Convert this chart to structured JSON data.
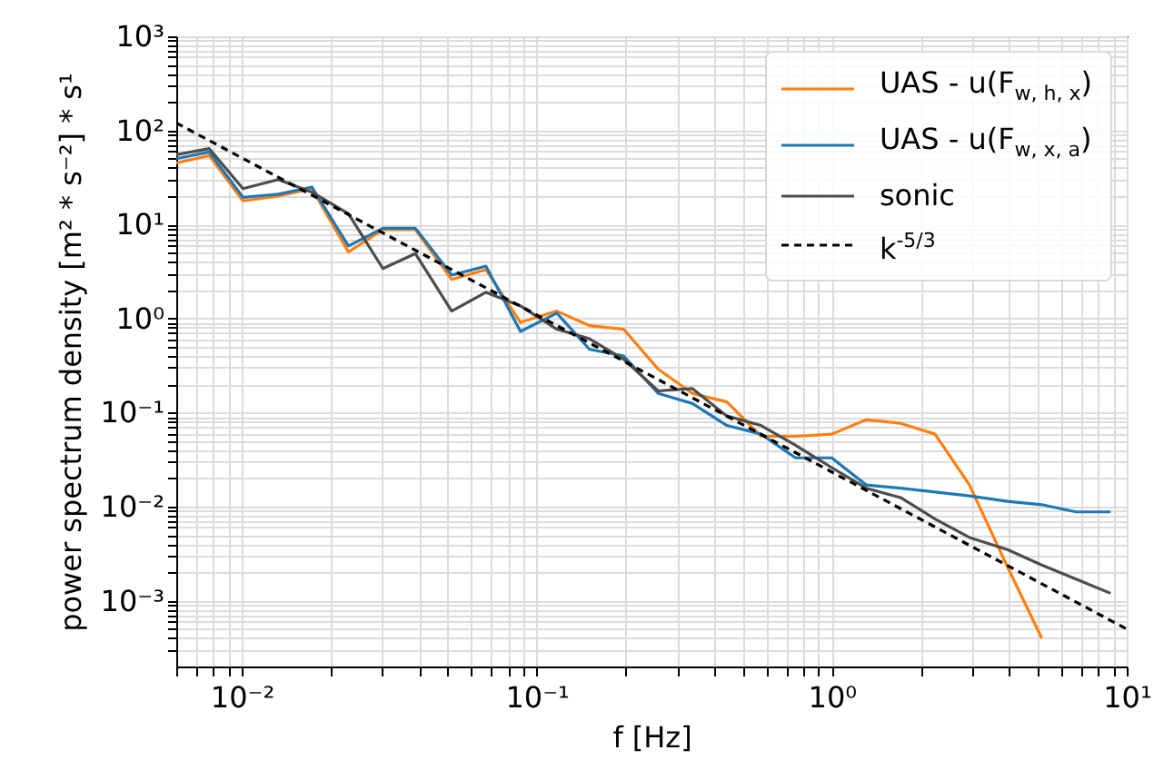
{
  "chart_data": {
    "type": "line",
    "xlabel": "f [Hz]",
    "ylabel": "power spectrum density [m² * s⁻²] * s¹",
    "log": "xy",
    "grid": true,
    "legend": "top right",
    "x": [
      0.006,
      0.00776,
      0.0101,
      0.0133,
      0.0173,
      0.023,
      0.0301,
      0.0388,
      0.0515,
      0.0673,
      0.0881,
      0.117,
      0.151,
      0.197,
      0.258,
      0.337,
      0.441,
      0.576,
      0.754,
      1.0,
      1.31,
      1.71,
      2.24,
      2.93,
      3.94,
      5.15,
      6.73,
      8.81
    ],
    "series": [
      {
        "name": "UAS - u(F$_{w, h, x}$)",
        "color": "#ff7f0e",
        "line_style": "solid",
        "values": [
          45,
          54,
          17.8,
          20,
          24,
          5.1,
          8.8,
          8.8,
          2.6,
          3.3,
          0.91,
          1.2,
          0.84,
          0.77,
          0.29,
          0.16,
          0.13,
          0.056,
          0.056,
          0.059,
          0.084,
          0.077,
          0.059,
          0.017,
          0.0023,
          0.0004,
          null,
          null
        ]
      },
      {
        "name": "UAS - u(F$_{w, x, a}$)",
        "color": "#1f77b4",
        "line_style": "solid",
        "values": [
          50,
          59,
          19.4,
          21,
          25,
          5.9,
          9.1,
          9.1,
          2.9,
          3.6,
          0.73,
          1.14,
          0.47,
          0.4,
          0.16,
          0.125,
          0.073,
          0.059,
          0.033,
          0.033,
          0.017,
          0.0157,
          0.0143,
          0.013,
          0.0114,
          0.0105,
          0.0088,
          0.0088
        ]
      },
      {
        "name": "sonic",
        "color": "#4d4d4d",
        "line_style": "solid",
        "values": [
          55,
          64,
          24,
          30,
          22,
          13,
          3.4,
          4.9,
          1.2,
          1.9,
          1.36,
          0.77,
          0.61,
          0.37,
          0.17,
          0.18,
          0.092,
          0.073,
          0.045,
          0.026,
          0.0157,
          0.0125,
          0.0074,
          0.0047,
          0.0035,
          0.0024,
          0.0017,
          0.0012
        ]
      },
      {
        "name": "k$^{-5/3}$",
        "color": "#000000",
        "line_style": "dashed",
        "type": "line",
        "x": [
          0.006,
          10
        ],
        "values": [
          120,
          0.0005
        ]
      }
    ],
    "xlim": [
      0.006,
      10
    ],
    "ylim": [
      0.0002,
      1000
    ],
    "xticks": [
      {
        "value": 0.006,
        "label": null
      },
      {
        "value": 0.007,
        "label": null
      },
      {
        "value": 0.008,
        "label": null
      },
      {
        "value": 0.009,
        "label": null
      },
      {
        "value": 0.01,
        "label": "10⁻²"
      },
      {
        "value": 0.02,
        "label": null
      },
      {
        "value": 0.03,
        "label": null
      },
      {
        "value": 0.04,
        "label": null
      },
      {
        "value": 0.05,
        "label": null
      },
      {
        "value": 0.06,
        "label": null
      },
      {
        "value": 0.07,
        "label": null
      },
      {
        "value": 0.08,
        "label": null
      },
      {
        "value": 0.09,
        "label": null
      },
      {
        "value": 0.1,
        "label": "10⁻¹"
      },
      {
        "value": 0.2,
        "label": null
      },
      {
        "value": 0.3,
        "label": null
      },
      {
        "value": 0.4,
        "label": null
      },
      {
        "value": 0.5,
        "label": null
      },
      {
        "value": 0.6,
        "label": null
      },
      {
        "value": 0.7,
        "label": null
      },
      {
        "value": 0.8,
        "label": null
      },
      {
        "value": 0.9,
        "label": null
      },
      {
        "value": 1,
        "label": "10⁰"
      },
      {
        "value": 2,
        "label": null
      },
      {
        "value": 3,
        "label": null
      },
      {
        "value": 4,
        "label": null
      },
      {
        "value": 5,
        "label": null
      },
      {
        "value": 6,
        "label": null
      },
      {
        "value": 7,
        "label": null
      },
      {
        "value": 8,
        "label": null
      },
      {
        "value": 9,
        "label": null
      },
      {
        "value": 10,
        "label": "10¹"
      }
    ],
    "yticks": [
      {
        "value": 0.0003,
        "label": null
      },
      {
        "value": 0.0004,
        "label": null
      },
      {
        "value": 0.0005,
        "label": null
      },
      {
        "value": 0.0006,
        "label": null
      },
      {
        "value": 0.0007,
        "label": null
      },
      {
        "value": 0.0008,
        "label": null
      },
      {
        "value": 0.0009,
        "label": null
      },
      {
        "value": 0.001,
        "label": "10⁻³"
      },
      {
        "value": 0.002,
        "label": null
      },
      {
        "value": 0.003,
        "label": null
      },
      {
        "value": 0.004,
        "label": null
      },
      {
        "value": 0.005,
        "label": null
      },
      {
        "value": 0.006,
        "label": null
      },
      {
        "value": 0.007,
        "label": null
      },
      {
        "value": 0.008,
        "label": null
      },
      {
        "value": 0.009,
        "label": null
      },
      {
        "value": 0.01,
        "label": "10⁻²"
      },
      {
        "value": 0.02,
        "label": null
      },
      {
        "value": 0.03,
        "label": null
      },
      {
        "value": 0.04,
        "label": null
      },
      {
        "value": 0.05,
        "label": null
      },
      {
        "value": 0.06,
        "label": null
      },
      {
        "value": 0.07,
        "label": null
      },
      {
        "value": 0.08,
        "label": null
      },
      {
        "value": 0.09,
        "label": null
      },
      {
        "value": 0.1,
        "label": "10⁻¹"
      },
      {
        "value": 0.2,
        "label": null
      },
      {
        "value": 0.3,
        "label": null
      },
      {
        "value": 0.4,
        "label": null
      },
      {
        "value": 0.5,
        "label": null
      },
      {
        "value": 0.6,
        "label": null
      },
      {
        "value": 0.7,
        "label": null
      },
      {
        "value": 0.8,
        "label": null
      },
      {
        "value": 0.9,
        "label": null
      },
      {
        "value": 1,
        "label": "10⁰"
      },
      {
        "value": 2,
        "label": null
      },
      {
        "value": 3,
        "label": null
      },
      {
        "value": 4,
        "label": null
      },
      {
        "value": 5,
        "label": null
      },
      {
        "value": 6,
        "label": null
      },
      {
        "value": 7,
        "label": null
      },
      {
        "value": 8,
        "label": null
      },
      {
        "value": 9,
        "label": null
      },
      {
        "value": 10,
        "label": "10¹"
      },
      {
        "value": 20,
        "label": null
      },
      {
        "value": 30,
        "label": null
      },
      {
        "value": 40,
        "label": null
      },
      {
        "value": 50,
        "label": null
      },
      {
        "value": 60,
        "label": null
      },
      {
        "value": 70,
        "label": null
      },
      {
        "value": 80,
        "label": null
      },
      {
        "value": 90,
        "label": null
      },
      {
        "value": 100,
        "label": "10²"
      },
      {
        "value": 200,
        "label": null
      },
      {
        "value": 300,
        "label": null
      },
      {
        "value": 400,
        "label": null
      },
      {
        "value": 500,
        "label": null
      },
      {
        "value": 600,
        "label": null
      },
      {
        "value": 700,
        "label": null
      },
      {
        "value": 800,
        "label": null
      },
      {
        "value": 900,
        "label": null
      },
      {
        "value": 1000,
        "label": "10³"
      }
    ]
  }
}
